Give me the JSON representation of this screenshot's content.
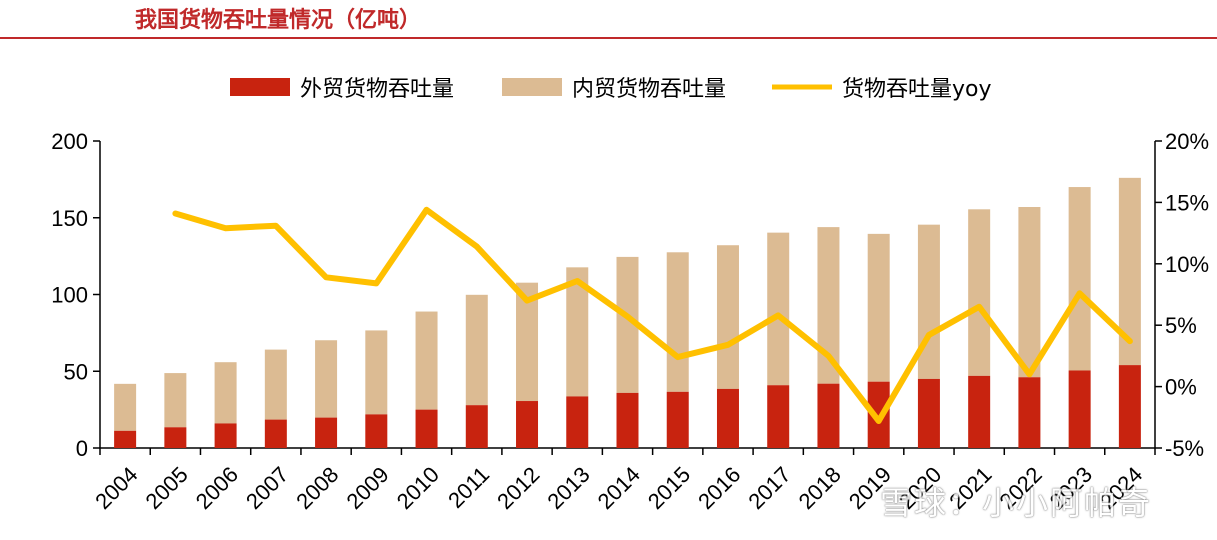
{
  "title": "我国货物吞吐量情况（亿吨）",
  "watermark": "雪球：小小阿帕奇",
  "colors": {
    "title": "#c0292a",
    "foreign": "#c8230f",
    "domestic": "#dcbb93",
    "yoy": "#ffc000",
    "axis": "#000000"
  },
  "chart_data": {
    "type": "bar",
    "title": "我国货物吞吐量情况（亿吨）",
    "categories": [
      "2004",
      "2005",
      "2006",
      "2007",
      "2008",
      "2009",
      "2010",
      "2011",
      "2012",
      "2013",
      "2014",
      "2015",
      "2016",
      "2017",
      "2018",
      "2019",
      "2020",
      "2021",
      "2022",
      "2023",
      "2024"
    ],
    "stacked": true,
    "series": [
      {
        "name": "外贸货物吞吐量",
        "kind": "bar",
        "axis": "left",
        "values": [
          11.2,
          13.5,
          16.0,
          18.5,
          19.8,
          21.9,
          25.0,
          27.9,
          30.6,
          33.6,
          35.9,
          36.6,
          38.5,
          40.9,
          41.9,
          43.2,
          45.0,
          47.0,
          46.1,
          50.5,
          54.0
        ]
      },
      {
        "name": "内贸货物吞吐量",
        "kind": "bar",
        "axis": "left",
        "values": [
          30.6,
          35.3,
          39.9,
          45.6,
          50.4,
          54.7,
          63.9,
          71.9,
          77.1,
          84.1,
          88.6,
          90.9,
          93.6,
          99.4,
          102.0,
          96.3,
          100.5,
          108.5,
          110.9,
          119.5,
          122.0
        ]
      },
      {
        "name": "货物吞吐量yoy",
        "kind": "line",
        "axis": "right",
        "unit": "%",
        "values": [
          null,
          14.1,
          12.9,
          13.1,
          8.9,
          8.4,
          14.4,
          11.4,
          7.0,
          8.6,
          5.7,
          2.4,
          3.4,
          5.8,
          2.5,
          -2.8,
          4.2,
          6.5,
          1.0,
          7.6,
          3.7
        ]
      }
    ],
    "legend": [
      "外贸货物吞吐量",
      "内贸货物吞吐量",
      "货物吞吐量yoy"
    ],
    "legend_position": "top",
    "y_left": {
      "min": 0,
      "max": 200,
      "ticks": [
        0,
        50,
        100,
        150,
        200
      ],
      "tick_labels": [
        "0",
        "50",
        "100",
        "150",
        "200"
      ]
    },
    "y_right": {
      "min": -5,
      "max": 20,
      "ticks": [
        -5,
        0,
        5,
        10,
        15,
        20
      ],
      "tick_labels": [
        "-5%",
        "0%",
        "5%",
        "10%",
        "15%",
        "20%"
      ]
    },
    "xlabel": "",
    "ylabel": ""
  }
}
